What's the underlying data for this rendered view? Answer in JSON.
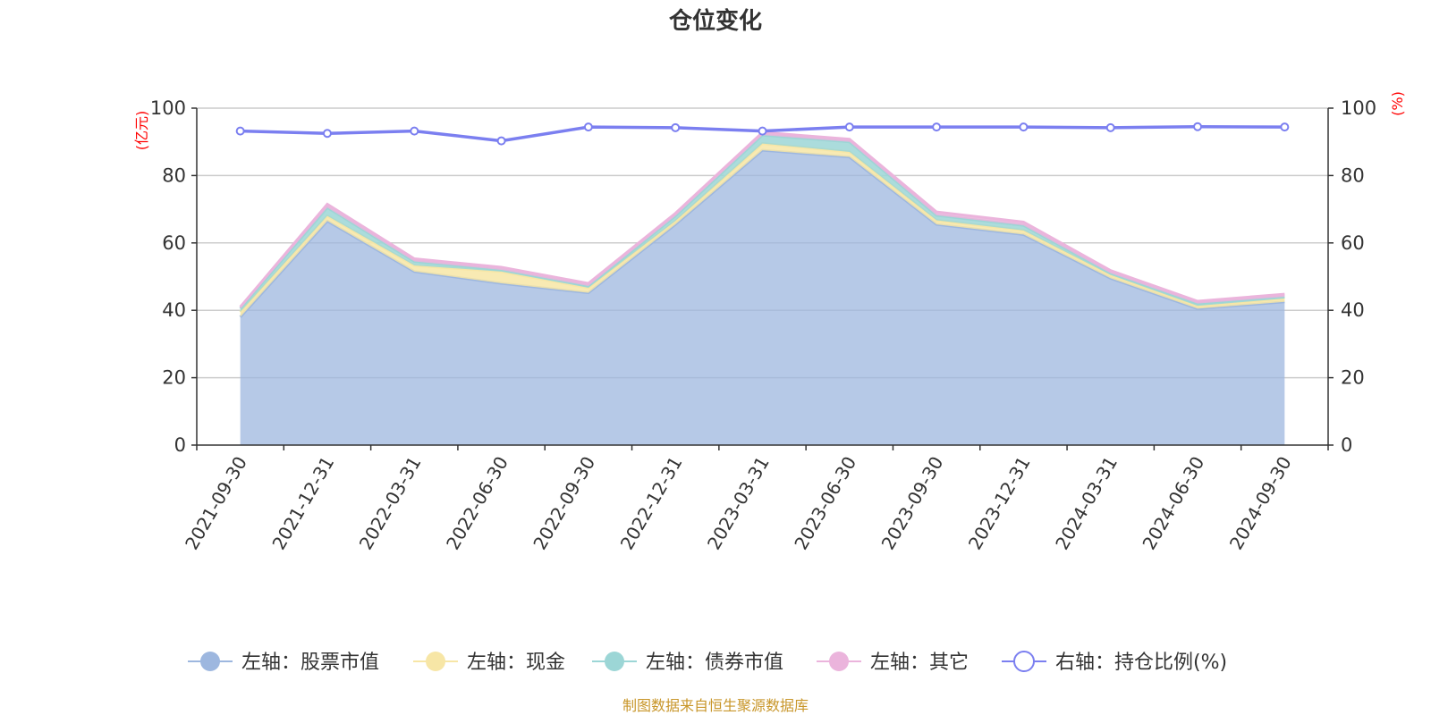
{
  "chart_data": {
    "type": "area",
    "title": "仓位变化",
    "categories": [
      "2021-09-30",
      "2021-12-31",
      "2022-03-31",
      "2022-06-30",
      "2022-09-30",
      "2022-12-31",
      "2023-03-31",
      "2023-06-30",
      "2023-09-30",
      "2023-12-31",
      "2024-03-31",
      "2024-06-30",
      "2024-09-30"
    ],
    "y_left": {
      "unit": "(亿元)",
      "min": 0,
      "max": 100,
      "ticks": [
        "0",
        "20",
        "40",
        "60",
        "80",
        "100"
      ]
    },
    "y_right": {
      "unit": "(%)",
      "min": 0,
      "max": 100,
      "ticks": [
        "0",
        "20",
        "40",
        "60",
        "80",
        "100"
      ]
    },
    "stacked": true,
    "grid": true,
    "legend_position": "bottom",
    "series": [
      {
        "name": "左轴：股票市值",
        "axis": "left",
        "type": "area",
        "color": "#9db7df",
        "values": [
          38,
          66.5,
          51.5,
          48,
          45.2,
          65.5,
          87.5,
          85.5,
          65.5,
          62.5,
          49.5,
          40.5,
          42.5
        ]
      },
      {
        "name": "左轴：现金",
        "axis": "left",
        "type": "area",
        "color": "#f7e6a6",
        "values": [
          1.5,
          1.5,
          1.8,
          3.5,
          1.5,
          1.0,
          2.0,
          1.5,
          1.2,
          1.2,
          1.0,
          0.8,
          1.0
        ]
      },
      {
        "name": "左轴：债券市值",
        "axis": "left",
        "type": "area",
        "color": "#9cd6d6",
        "values": [
          1.0,
          2.5,
          1.2,
          0.5,
          0.5,
          1.5,
          2.5,
          3.0,
          1.5,
          1.5,
          0.5,
          0.7,
          0.5
        ]
      },
      {
        "name": "左轴：其它",
        "axis": "left",
        "type": "area",
        "color": "#ebb4dc",
        "values": [
          0.5,
          1.0,
          0.8,
          0.8,
          0.8,
          0.8,
          0.8,
          0.8,
          1.0,
          1.0,
          0.8,
          0.7,
          0.8
        ]
      },
      {
        "name": "右轴：持仓比例(%)",
        "axis": "right",
        "type": "line",
        "color": "#7b7ff0",
        "values": [
          93.2,
          92.5,
          93.2,
          90.3,
          94.4,
          94.2,
          93.2,
          94.4,
          94.4,
          94.4,
          94.2,
          94.5,
          94.4
        ]
      }
    ],
    "source": "制图数据来自恒生聚源数据库"
  }
}
